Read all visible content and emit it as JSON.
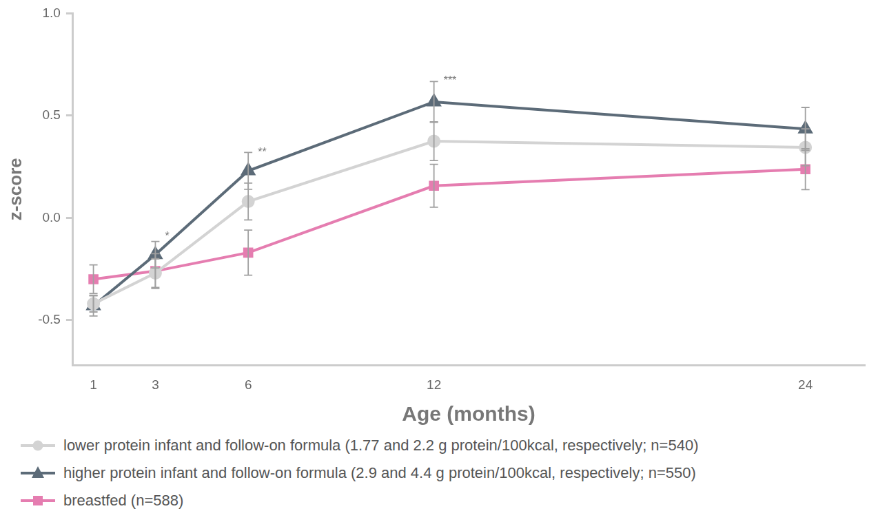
{
  "chart_data": {
    "type": "line",
    "x_label": "Age (months)",
    "y_label": "z-score",
    "x": [
      1,
      3,
      6,
      12,
      24
    ],
    "xlim": [
      0.34,
      25.9
    ],
    "xticks": [
      1,
      3,
      6,
      12,
      24
    ],
    "ylim": [
      -0.72,
      1.0
    ],
    "yticks": [
      {
        "value": 1,
        "label": "1.0"
      },
      0.5,
      {
        "value": 0,
        "label": "0.0"
      },
      -0.5
    ],
    "grid": false,
    "legend": "bottom",
    "series": [
      {
        "name": "lower protein infant and follow-on formula (1.77 and 2.2 g protein/100kcal, respectively; n=540)",
        "color": "#d3d3d3",
        "marker": "circle",
        "values": [
          -0.42,
          -0.27,
          0.08,
          0.375,
          0.345
        ],
        "errors": [
          0.04,
          0.07,
          0.09,
          0.095,
          0.09
        ]
      },
      {
        "name": "higher protein infant and follow-on formula (2.9 and 4.4 g protein/100kcal, respectively; n=550)",
        "color": "#5c6b78",
        "marker": "triangle",
        "values": [
          -0.43,
          -0.18,
          0.23,
          0.567,
          0.435
        ],
        "errors": [
          0.05,
          0.065,
          0.09,
          0.1,
          0.105
        ]
      },
      {
        "name": "breastfed (n=588)",
        "color": "#e57db0",
        "marker": "square",
        "values": [
          -0.3,
          -0.26,
          -0.17,
          0.157,
          0.238
        ],
        "errors": [
          0.07,
          0.085,
          0.11,
          0.105,
          0.1
        ]
      }
    ],
    "annotations": [
      {
        "text": "*",
        "x": 3,
        "y": -0.09
      },
      {
        "text": "**",
        "x": 6,
        "y": 0.32
      },
      {
        "text": "***",
        "x": 12,
        "y": 0.67
      }
    ]
  }
}
